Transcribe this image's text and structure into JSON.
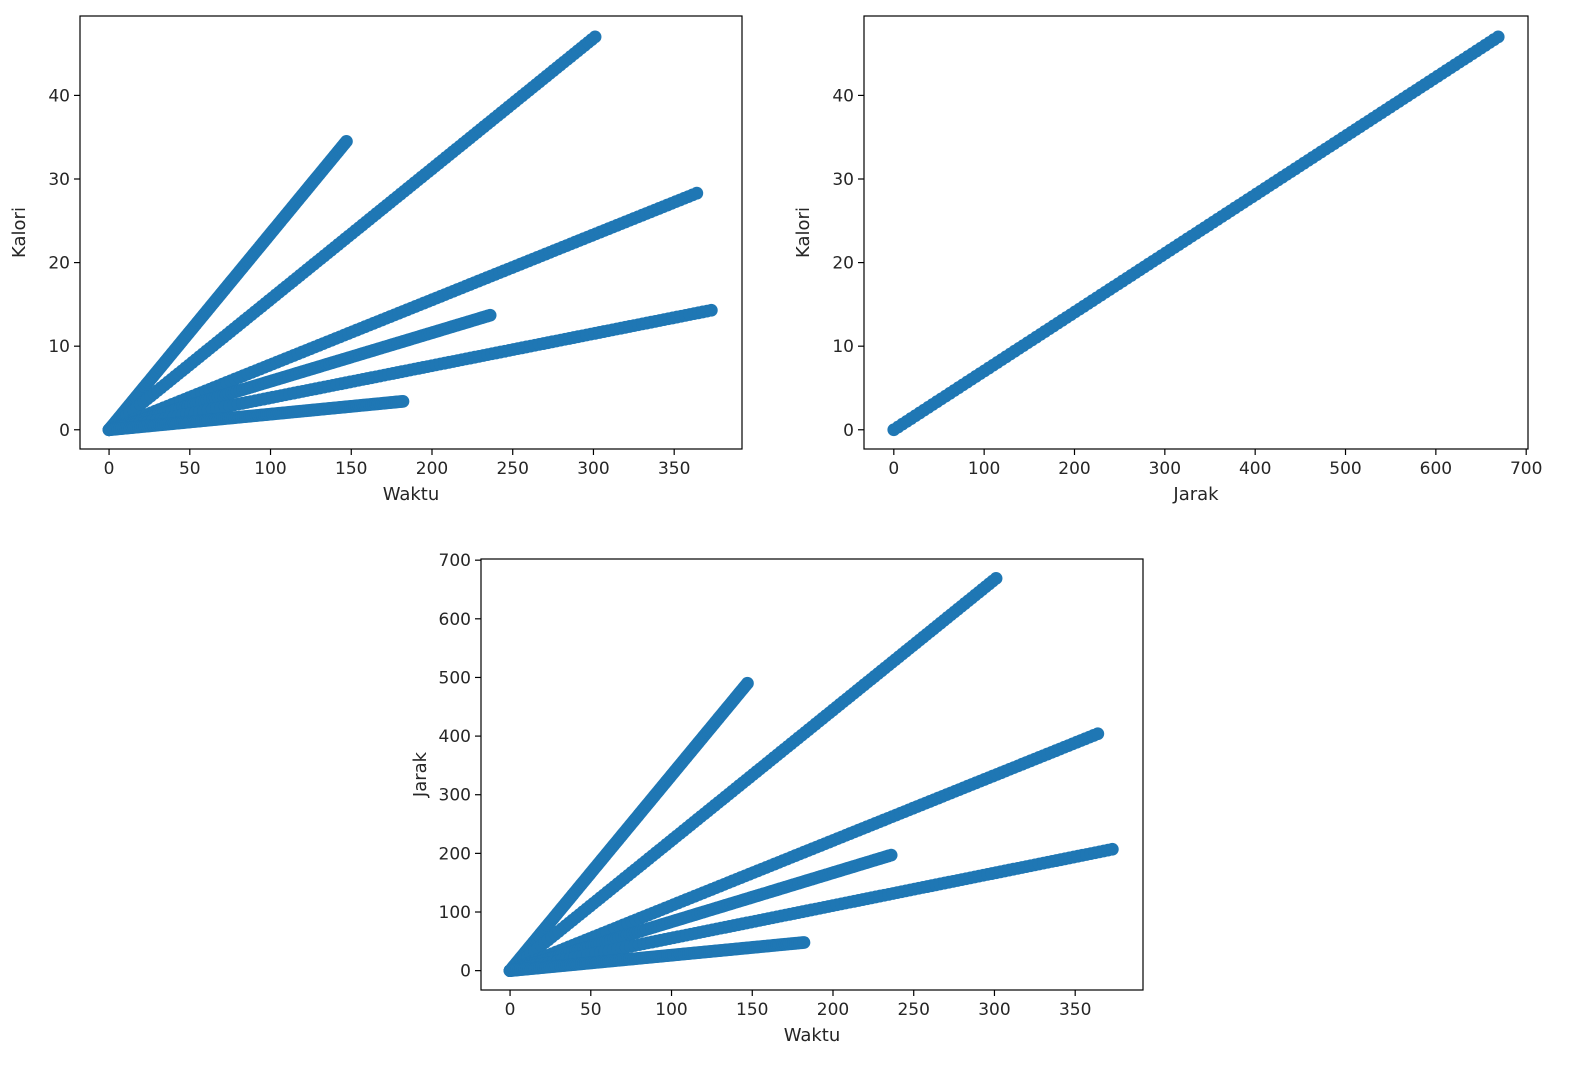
{
  "colors": {
    "series": "#1f77b4",
    "axes": "#000000",
    "text": "#262626",
    "background": "#ffffff"
  },
  "chart_data": [
    {
      "type": "scatter",
      "xlabel": "Waktu",
      "ylabel": "Kalori",
      "xlim": [
        -18,
        392
      ],
      "ylim": [
        -2.3,
        49.5
      ],
      "xticks": [
        0,
        50,
        100,
        150,
        200,
        250,
        300,
        350
      ],
      "yticks": [
        0,
        10,
        20,
        30,
        40
      ],
      "grid": false,
      "series": [
        {
          "color": "#1f77b4",
          "points": [
            [
              0,
              0
            ],
            [
              147,
              34.5
            ]
          ]
        },
        {
          "color": "#1f77b4",
          "points": [
            [
              0,
              0
            ],
            [
              301,
              47
            ]
          ]
        },
        {
          "color": "#1f77b4",
          "points": [
            [
              0,
              0
            ],
            [
              364,
              28.3
            ]
          ]
        },
        {
          "color": "#1f77b4",
          "points": [
            [
              0,
              0
            ],
            [
              236,
              13.7
            ]
          ]
        },
        {
          "color": "#1f77b4",
          "points": [
            [
              0,
              0
            ],
            [
              373,
              14.3
            ]
          ]
        },
        {
          "color": "#1f77b4",
          "points": [
            [
              0,
              0
            ],
            [
              182,
              3.4
            ]
          ]
        }
      ]
    },
    {
      "type": "scatter",
      "xlabel": "Jarak",
      "ylabel": "Kalori",
      "xlim": [
        -33,
        702
      ],
      "ylim": [
        -2.3,
        49.5
      ],
      "xticks": [
        0,
        100,
        200,
        300,
        400,
        500,
        600,
        700
      ],
      "yticks": [
        0,
        10,
        20,
        30,
        40
      ],
      "grid": false,
      "series": [
        {
          "color": "#1f77b4",
          "points": [
            [
              0,
              0
            ],
            [
              669,
              47
            ]
          ]
        }
      ]
    },
    {
      "type": "scatter",
      "xlabel": "Waktu",
      "ylabel": "Jarak",
      "xlim": [
        -18,
        392
      ],
      "ylim": [
        -33,
        702
      ],
      "xticks": [
        0,
        50,
        100,
        150,
        200,
        250,
        300,
        350
      ],
      "yticks": [
        0,
        100,
        200,
        300,
        400,
        500,
        600,
        700
      ],
      "grid": false,
      "series": [
        {
          "color": "#1f77b4",
          "points": [
            [
              0,
              0
            ],
            [
              147,
              490
            ]
          ]
        },
        {
          "color": "#1f77b4",
          "points": [
            [
              0,
              0
            ],
            [
              301,
              669
            ]
          ]
        },
        {
          "color": "#1f77b4",
          "points": [
            [
              0,
              0
            ],
            [
              364,
              404
            ]
          ]
        },
        {
          "color": "#1f77b4",
          "points": [
            [
              0,
              0
            ],
            [
              236,
              197
            ]
          ]
        },
        {
          "color": "#1f77b4",
          "points": [
            [
              0,
              0
            ],
            [
              373,
              207
            ]
          ]
        },
        {
          "color": "#1f77b4",
          "points": [
            [
              0,
              0
            ],
            [
              182,
              48
            ]
          ]
        }
      ]
    }
  ]
}
